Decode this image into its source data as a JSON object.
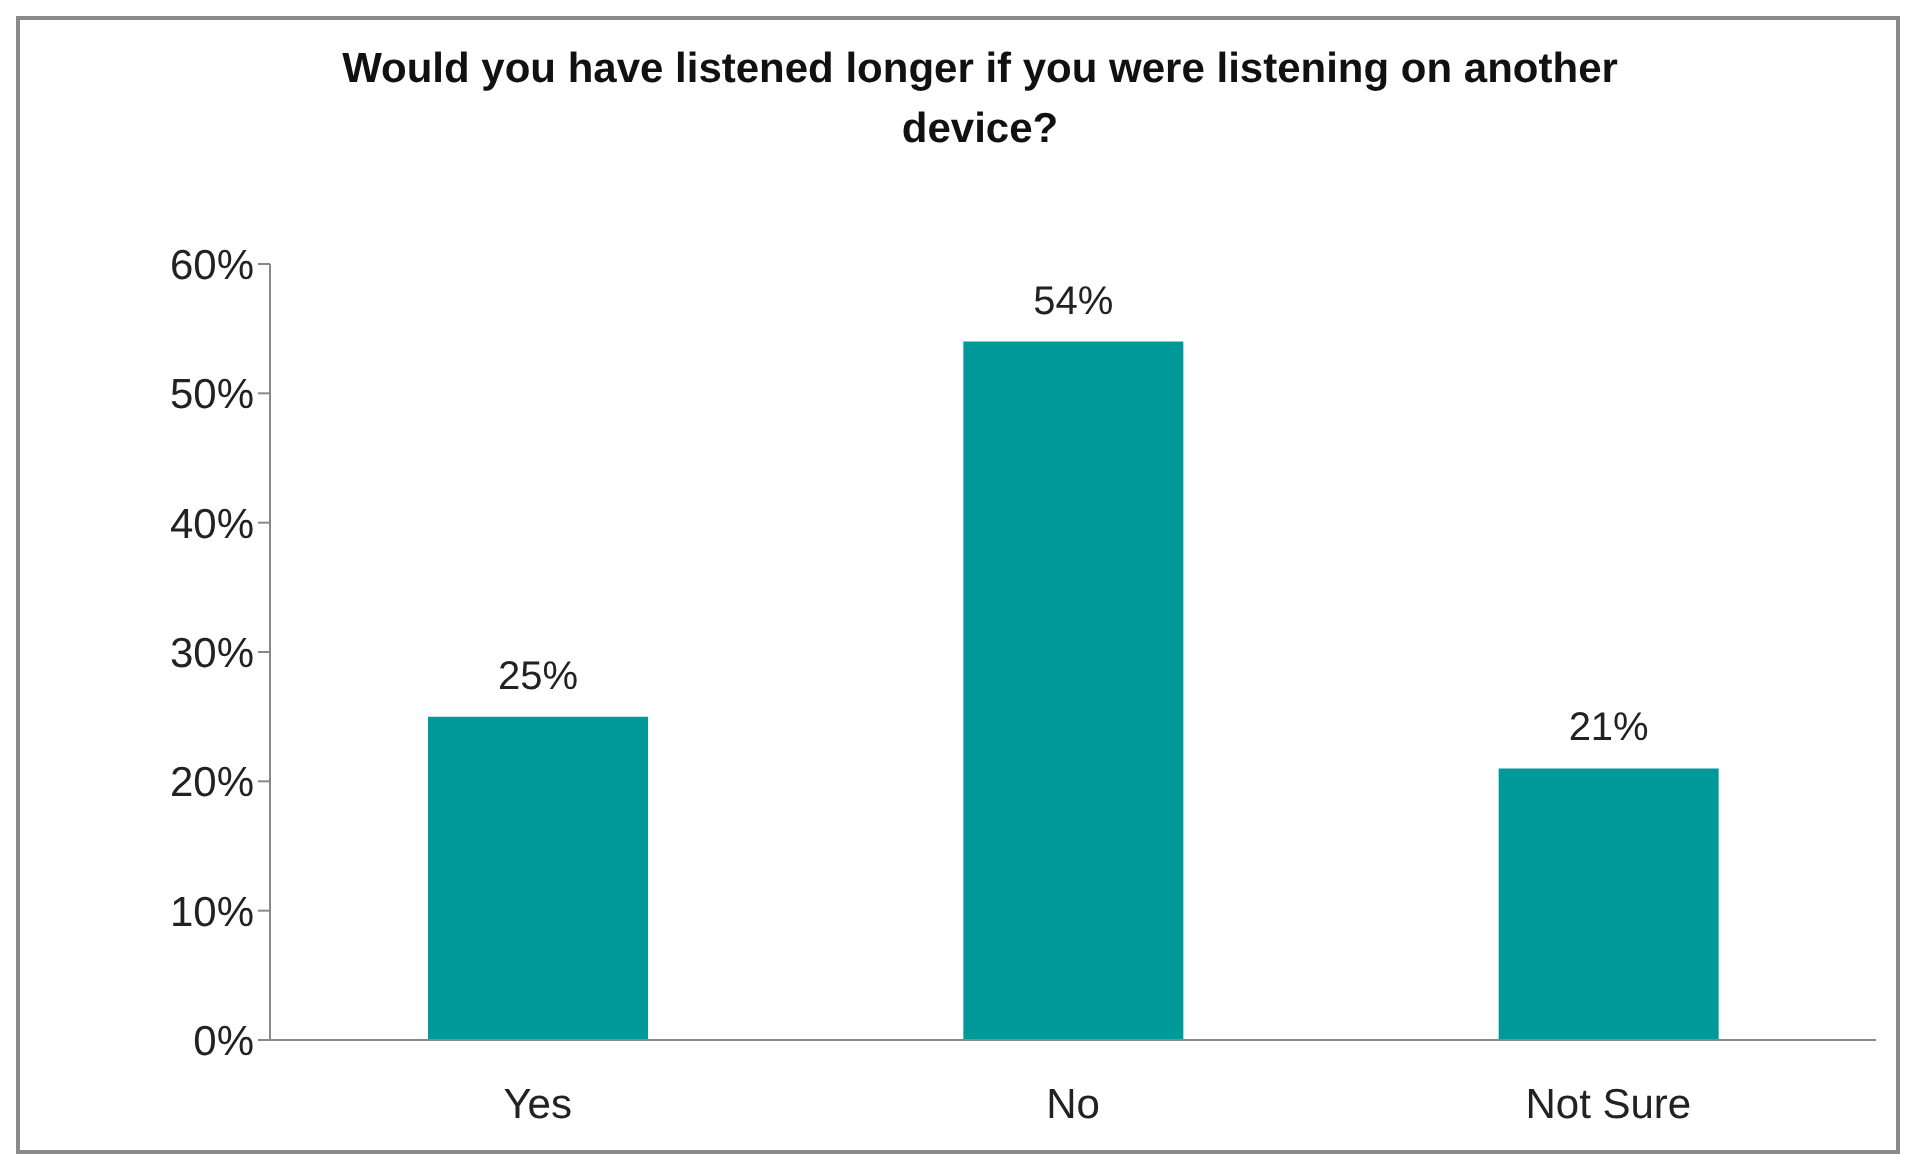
{
  "chart_data": {
    "type": "bar",
    "title": "Would you have listened longer if you were listening on another device?",
    "categories": [
      "Yes",
      "No",
      "Not Sure"
    ],
    "values": [
      25,
      54,
      21
    ],
    "value_labels": [
      "25%",
      "54%",
      "21%"
    ],
    "color": "#009999",
    "ylim": [
      0,
      60
    ],
    "yticks": [
      {
        "value": 0,
        "label": "0%"
      },
      {
        "value": 10,
        "label": "10%"
      },
      {
        "value": 20,
        "label": "20%"
      },
      {
        "value": 30,
        "label": "30%"
      },
      {
        "value": 40,
        "label": "40%"
      },
      {
        "value": 50,
        "label": "50%"
      },
      {
        "value": 60,
        "label": "60%"
      }
    ],
    "grid": false,
    "legend": false
  }
}
